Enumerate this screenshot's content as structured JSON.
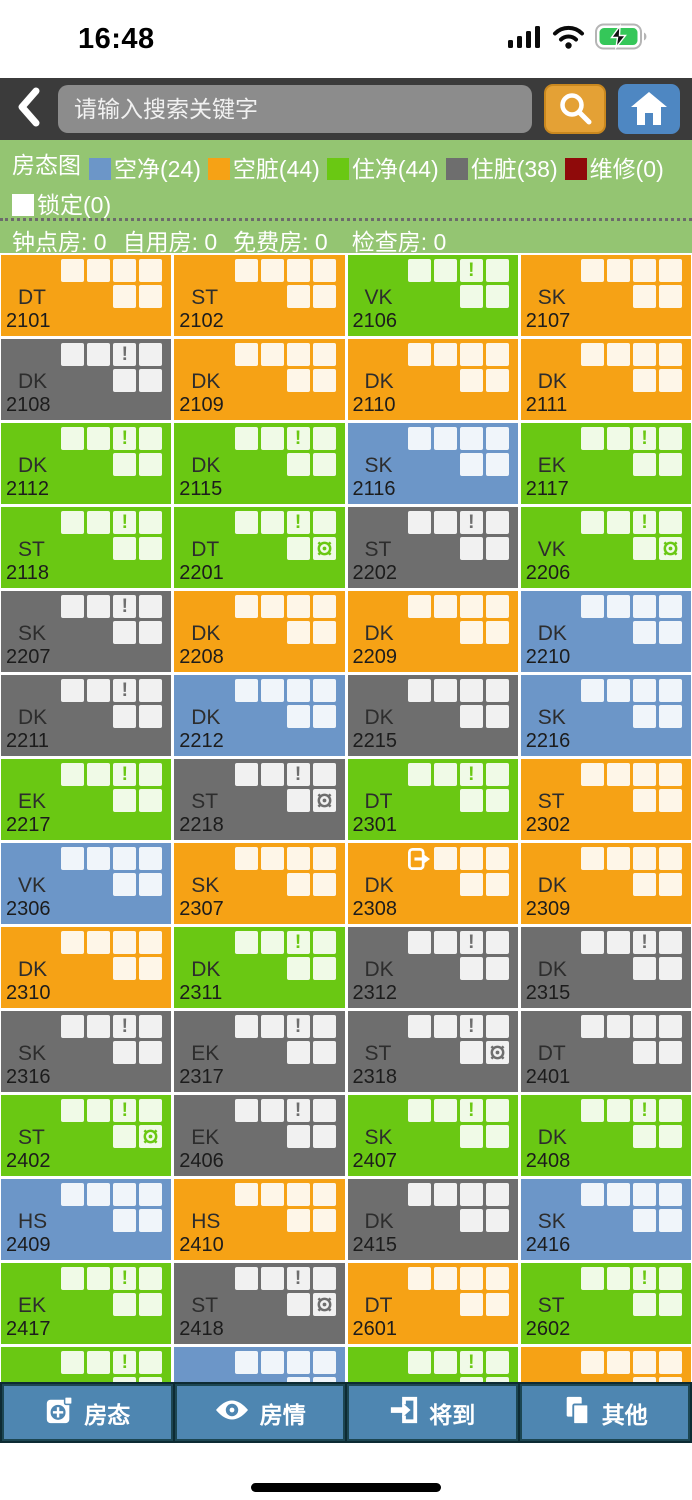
{
  "status_bar": {
    "time": "16:48"
  },
  "header": {
    "search_placeholder": "请输入搜索关键字"
  },
  "legend": {
    "title": "房态图",
    "items": [
      {
        "label": "空净",
        "count": 24,
        "text": "空净(24)",
        "color": "#6c96c8"
      },
      {
        "label": "空脏",
        "count": 44,
        "text": "空脏(44)",
        "color": "#f6a215"
      },
      {
        "label": "住净",
        "count": 44,
        "text": "住净(44)",
        "color": "#6ac813"
      },
      {
        "label": "住脏",
        "count": 38,
        "text": "住脏(38)",
        "color": "#6e6e6e"
      },
      {
        "label": "维修",
        "count": 0,
        "text": "维修(0)",
        "color": "#8f0a0a"
      },
      {
        "label": "锁定",
        "count": 0,
        "text": "锁定(0)",
        "color": "#ffffff"
      }
    ]
  },
  "stats": {
    "items": [
      {
        "label": "钟点房",
        "value": 0,
        "text": "钟点房: 0"
      },
      {
        "label": "自用房",
        "value": 0,
        "text": "自用房: 0"
      },
      {
        "label": "免费房",
        "value": 0,
        "text": "免费房: 0"
      },
      {
        "label": "检查房",
        "value": 0,
        "text": "检查房: 0"
      }
    ]
  },
  "room_grid": {
    "statuses": {
      "vacant-clean": "#6c96c8",
      "vacant-dirty": "#f6a215",
      "occupied-clean": "#6ac813",
      "occupied-dirty": "#6e6e6e"
    },
    "rooms": [
      {
        "type": "DT",
        "number": "2101",
        "status": "vacant-dirty",
        "alert": false,
        "wheel": false,
        "exit": false
      },
      {
        "type": "ST",
        "number": "2102",
        "status": "vacant-dirty",
        "alert": false,
        "wheel": false,
        "exit": false
      },
      {
        "type": "VK",
        "number": "2106",
        "status": "occupied-clean",
        "alert": true,
        "wheel": false,
        "exit": false
      },
      {
        "type": "SK",
        "number": "2107",
        "status": "vacant-dirty",
        "alert": false,
        "wheel": false,
        "exit": false
      },
      {
        "type": "DK",
        "number": "2108",
        "status": "occupied-dirty",
        "alert": true,
        "wheel": false,
        "exit": false
      },
      {
        "type": "DK",
        "number": "2109",
        "status": "vacant-dirty",
        "alert": false,
        "wheel": false,
        "exit": false
      },
      {
        "type": "DK",
        "number": "2110",
        "status": "vacant-dirty",
        "alert": false,
        "wheel": false,
        "exit": false
      },
      {
        "type": "DK",
        "number": "2111",
        "status": "vacant-dirty",
        "alert": false,
        "wheel": false,
        "exit": false
      },
      {
        "type": "DK",
        "number": "2112",
        "status": "occupied-clean",
        "alert": true,
        "wheel": false,
        "exit": false
      },
      {
        "type": "DK",
        "number": "2115",
        "status": "occupied-clean",
        "alert": true,
        "wheel": false,
        "exit": false
      },
      {
        "type": "SK",
        "number": "2116",
        "status": "vacant-clean",
        "alert": false,
        "wheel": false,
        "exit": false
      },
      {
        "type": "EK",
        "number": "2117",
        "status": "occupied-clean",
        "alert": true,
        "wheel": false,
        "exit": false
      },
      {
        "type": "ST",
        "number": "2118",
        "status": "occupied-clean",
        "alert": true,
        "wheel": false,
        "exit": false
      },
      {
        "type": "DT",
        "number": "2201",
        "status": "occupied-clean",
        "alert": true,
        "wheel": true,
        "exit": false
      },
      {
        "type": "ST",
        "number": "2202",
        "status": "occupied-dirty",
        "alert": true,
        "wheel": false,
        "exit": false
      },
      {
        "type": "VK",
        "number": "2206",
        "status": "occupied-clean",
        "alert": true,
        "wheel": true,
        "exit": false
      },
      {
        "type": "SK",
        "number": "2207",
        "status": "occupied-dirty",
        "alert": true,
        "wheel": false,
        "exit": false
      },
      {
        "type": "DK",
        "number": "2208",
        "status": "vacant-dirty",
        "alert": false,
        "wheel": false,
        "exit": false
      },
      {
        "type": "DK",
        "number": "2209",
        "status": "vacant-dirty",
        "alert": false,
        "wheel": false,
        "exit": false
      },
      {
        "type": "DK",
        "number": "2210",
        "status": "vacant-clean",
        "alert": false,
        "wheel": false,
        "exit": false
      },
      {
        "type": "DK",
        "number": "2211",
        "status": "occupied-dirty",
        "alert": true,
        "wheel": false,
        "exit": false
      },
      {
        "type": "DK",
        "number": "2212",
        "status": "vacant-clean",
        "alert": false,
        "wheel": false,
        "exit": false
      },
      {
        "type": "DK",
        "number": "2215",
        "status": "occupied-dirty",
        "alert": false,
        "wheel": false,
        "exit": false
      },
      {
        "type": "SK",
        "number": "2216",
        "status": "vacant-clean",
        "alert": false,
        "wheel": false,
        "exit": false
      },
      {
        "type": "EK",
        "number": "2217",
        "status": "occupied-clean",
        "alert": true,
        "wheel": false,
        "exit": false
      },
      {
        "type": "ST",
        "number": "2218",
        "status": "occupied-dirty",
        "alert": true,
        "wheel": true,
        "exit": false
      },
      {
        "type": "DT",
        "number": "2301",
        "status": "occupied-clean",
        "alert": true,
        "wheel": false,
        "exit": false
      },
      {
        "type": "ST",
        "number": "2302",
        "status": "vacant-dirty",
        "alert": false,
        "wheel": false,
        "exit": false
      },
      {
        "type": "VK",
        "number": "2306",
        "status": "vacant-clean",
        "alert": false,
        "wheel": false,
        "exit": false
      },
      {
        "type": "SK",
        "number": "2307",
        "status": "vacant-dirty",
        "alert": false,
        "wheel": false,
        "exit": false
      },
      {
        "type": "DK",
        "number": "2308",
        "status": "vacant-dirty",
        "alert": false,
        "wheel": false,
        "exit": true
      },
      {
        "type": "DK",
        "number": "2309",
        "status": "vacant-dirty",
        "alert": false,
        "wheel": false,
        "exit": false
      },
      {
        "type": "DK",
        "number": "2310",
        "status": "vacant-dirty",
        "alert": false,
        "wheel": false,
        "exit": false
      },
      {
        "type": "DK",
        "number": "2311",
        "status": "occupied-clean",
        "alert": true,
        "wheel": false,
        "exit": false
      },
      {
        "type": "DK",
        "number": "2312",
        "status": "occupied-dirty",
        "alert": true,
        "wheel": false,
        "exit": false
      },
      {
        "type": "DK",
        "number": "2315",
        "status": "occupied-dirty",
        "alert": true,
        "wheel": false,
        "exit": false
      },
      {
        "type": "SK",
        "number": "2316",
        "status": "occupied-dirty",
        "alert": true,
        "wheel": false,
        "exit": false
      },
      {
        "type": "EK",
        "number": "2317",
        "status": "occupied-dirty",
        "alert": true,
        "wheel": false,
        "exit": false
      },
      {
        "type": "ST",
        "number": "2318",
        "status": "occupied-dirty",
        "alert": true,
        "wheel": true,
        "exit": false
      },
      {
        "type": "DT",
        "number": "2401",
        "status": "occupied-dirty",
        "alert": false,
        "wheel": false,
        "exit": false
      },
      {
        "type": "ST",
        "number": "2402",
        "status": "occupied-clean",
        "alert": true,
        "wheel": true,
        "exit": false
      },
      {
        "type": "EK",
        "number": "2406",
        "status": "occupied-dirty",
        "alert": true,
        "wheel": false,
        "exit": false
      },
      {
        "type": "SK",
        "number": "2407",
        "status": "occupied-clean",
        "alert": true,
        "wheel": false,
        "exit": false
      },
      {
        "type": "DK",
        "number": "2408",
        "status": "occupied-clean",
        "alert": true,
        "wheel": false,
        "exit": false
      },
      {
        "type": "HS",
        "number": "2409",
        "status": "vacant-clean",
        "alert": false,
        "wheel": false,
        "exit": false
      },
      {
        "type": "HS",
        "number": "2410",
        "status": "vacant-dirty",
        "alert": false,
        "wheel": false,
        "exit": false
      },
      {
        "type": "DK",
        "number": "2415",
        "status": "occupied-dirty",
        "alert": false,
        "wheel": false,
        "exit": false
      },
      {
        "type": "SK",
        "number": "2416",
        "status": "vacant-clean",
        "alert": false,
        "wheel": false,
        "exit": false
      },
      {
        "type": "EK",
        "number": "2417",
        "status": "occupied-clean",
        "alert": true,
        "wheel": false,
        "exit": false
      },
      {
        "type": "ST",
        "number": "2418",
        "status": "occupied-dirty",
        "alert": true,
        "wheel": true,
        "exit": false
      },
      {
        "type": "DT",
        "number": "2601",
        "status": "vacant-dirty",
        "alert": false,
        "wheel": false,
        "exit": false
      },
      {
        "type": "ST",
        "number": "2602",
        "status": "occupied-clean",
        "alert": true,
        "wheel": false,
        "exit": false
      },
      {
        "status": "occupied-clean",
        "alert": true,
        "wheel": false,
        "exit": false,
        "partial": true
      },
      {
        "status": "vacant-clean",
        "alert": false,
        "wheel": false,
        "exit": false,
        "partial": true
      },
      {
        "status": "occupied-clean",
        "alert": true,
        "wheel": false,
        "exit": false,
        "partial": true
      },
      {
        "status": "vacant-dirty",
        "alert": false,
        "wheel": false,
        "exit": false,
        "partial": true
      }
    ]
  },
  "bottom_nav": {
    "items": [
      {
        "label": "房态",
        "icon": "room-status-icon"
      },
      {
        "label": "房情",
        "icon": "room-info-icon"
      },
      {
        "label": "将到",
        "icon": "arriving-icon"
      },
      {
        "label": "其他",
        "icon": "other-icon"
      }
    ]
  }
}
